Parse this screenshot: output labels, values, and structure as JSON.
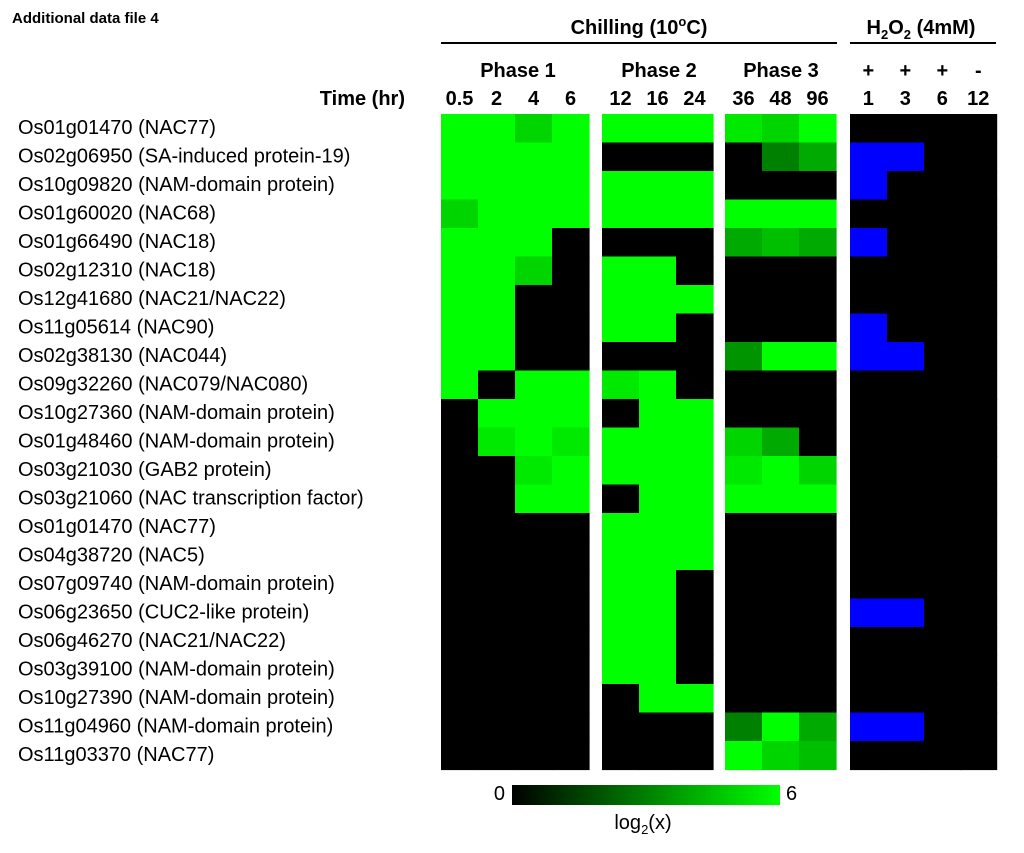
{
  "header_note": "Additional data file 4",
  "chart_data": {
    "type": "heatmap",
    "colorbar": {
      "min_label": "0",
      "max_label": "6",
      "label_main": "log",
      "label_sub": "2",
      "label_tail": "(x)",
      "min": 0,
      "max": 6
    },
    "colors": {
      "low": "#000000",
      "high": "#00ff00",
      "h2o2_on": "#0000ff",
      "h2o2_off": "#000000"
    },
    "time_label": "Time (hr)",
    "chilling": {
      "title_pre": "Chilling (10",
      "title_sup": "o",
      "title_post": "C)",
      "phases": [
        {
          "name": "Phase 1",
          "times": [
            "0.5",
            "2",
            "4",
            "6"
          ]
        },
        {
          "name": "Phase 2",
          "times": [
            "12",
            "16",
            "24"
          ]
        },
        {
          "name": "Phase 3",
          "times": [
            "36",
            "48",
            "96"
          ]
        }
      ]
    },
    "h2o2": {
      "title_main": "H",
      "title_sub1": "2",
      "title_mid": "O",
      "title_sub2": "2",
      "title_tail": " (4mM)",
      "signs": [
        "+",
        "+",
        "+",
        "-"
      ],
      "times": [
        "1",
        "3",
        "6",
        "12"
      ]
    },
    "genes": [
      "Os01g01470 (NAC77)",
      "Os02g06950 (SA-induced protein-19)",
      "Os10g09820 (NAM-domain protein)",
      "Os01g60020 (NAC68)",
      "Os01g66490 (NAC18)",
      "Os02g12310 (NAC18)",
      "Os12g41680 (NAC21/NAC22)",
      "Os11g05614 (NAC90)",
      "Os02g38130 (NAC044)",
      "Os09g32260 (NAC079/NAC080)",
      "Os10g27360 (NAM-domain protein)",
      "Os01g48460 (NAM-domain protein)",
      "Os03g21030 (GAB2 protein)",
      "Os03g21060 (NAC transcription factor)",
      "Os01g01470 (NAC77)",
      "Os04g38720 (NAC5)",
      "Os07g09740 (NAM-domain protein)",
      "Os06g23650 (CUC2-like protein)",
      "Os06g46270 (NAC21/NAC22)",
      "Os03g39100 (NAM-domain protein)",
      "Os10g27390 (NAM-domain protein)",
      "Os11g04960 (NAM-domain protein)",
      "Os11g03370 (NAC77)"
    ],
    "values": [
      [
        6,
        6,
        5,
        6,
        6,
        6,
        6,
        5.5,
        5,
        6
      ],
      [
        6,
        6,
        6,
        6,
        0,
        0,
        0,
        0,
        3,
        4
      ],
      [
        6,
        6,
        6,
        6,
        6,
        6,
        6,
        0,
        0,
        0
      ],
      [
        5,
        6,
        6,
        6,
        6,
        6,
        6,
        6,
        6,
        6
      ],
      [
        6,
        6,
        6,
        0,
        0,
        0,
        0,
        4,
        4.5,
        4
      ],
      [
        6,
        6,
        5,
        0,
        6,
        6,
        0,
        0,
        0,
        0
      ],
      [
        6,
        6,
        0,
        0,
        6,
        6,
        6,
        0,
        0,
        0
      ],
      [
        6,
        6,
        0,
        0,
        6,
        6,
        0,
        0,
        0,
        0
      ],
      [
        6,
        6,
        0,
        0,
        0,
        0,
        0,
        3.5,
        6,
        6
      ],
      [
        6,
        0,
        6,
        6,
        5.5,
        6,
        0,
        0,
        0,
        0
      ],
      [
        0,
        6,
        6,
        6,
        0,
        6,
        6,
        0,
        0,
        0
      ],
      [
        0,
        5.5,
        6,
        5.5,
        6,
        6,
        6,
        5,
        4,
        0
      ],
      [
        0,
        0,
        5.5,
        6,
        6,
        6,
        6,
        5.5,
        6,
        5
      ],
      [
        0,
        0,
        6,
        6,
        0,
        6,
        6,
        6,
        6,
        6
      ],
      [
        0,
        0,
        0,
        0,
        6,
        6,
        6,
        0,
        0,
        0
      ],
      [
        0,
        0,
        0,
        0,
        6,
        6,
        6,
        0,
        0,
        0
      ],
      [
        0,
        0,
        0,
        0,
        6,
        6,
        0,
        0,
        0,
        0
      ],
      [
        0,
        0,
        0,
        0,
        6,
        6,
        0,
        0,
        0,
        0
      ],
      [
        0,
        0,
        0,
        0,
        6,
        6,
        0,
        0,
        0,
        0
      ],
      [
        0,
        0,
        0,
        0,
        6,
        6,
        0,
        0,
        0,
        0
      ],
      [
        0,
        0,
        0,
        0,
        0,
        6,
        6,
        0,
        0,
        0
      ],
      [
        0,
        0,
        0,
        0,
        0,
        0,
        0,
        3,
        6,
        4
      ],
      [
        0,
        0,
        0,
        0,
        0,
        0,
        0,
        6,
        5,
        4.5
      ]
    ],
    "h2o2_values": [
      [
        0,
        0,
        0,
        0
      ],
      [
        1,
        1,
        0,
        0
      ],
      [
        1,
        0,
        0,
        0
      ],
      [
        0,
        0,
        0,
        0
      ],
      [
        1,
        0,
        0,
        0
      ],
      [
        0,
        0,
        0,
        0
      ],
      [
        0,
        0,
        0,
        0
      ],
      [
        1,
        0,
        0,
        0
      ],
      [
        1,
        1,
        0,
        0
      ],
      [
        0,
        0,
        0,
        0
      ],
      [
        0,
        0,
        0,
        0
      ],
      [
        0,
        0,
        0,
        0
      ],
      [
        0,
        0,
        0,
        0
      ],
      [
        0,
        0,
        0,
        0
      ],
      [
        0,
        0,
        0,
        0
      ],
      [
        0,
        0,
        0,
        0
      ],
      [
        0,
        0,
        0,
        0
      ],
      [
        1,
        1,
        0,
        0
      ],
      [
        0,
        0,
        0,
        0
      ],
      [
        0,
        0,
        0,
        0
      ],
      [
        0,
        0,
        0,
        0
      ],
      [
        1,
        1,
        0,
        0
      ],
      [
        0,
        0,
        0,
        0
      ]
    ]
  }
}
